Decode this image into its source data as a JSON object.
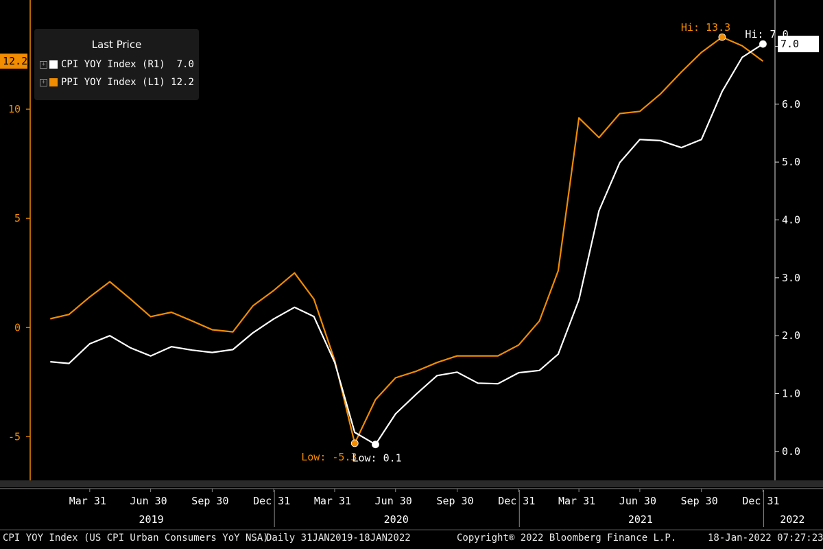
{
  "legend": {
    "title": "Last Price",
    "items": [
      {
        "label": "CPI YOY Index",
        "axis": "(R1)",
        "value": "7.0",
        "color": "#ffffff"
      },
      {
        "label": "PPI YOY Index",
        "axis": "(L1)",
        "value": "12.2",
        "color": "#f28c00"
      }
    ]
  },
  "footer": {
    "description": "CPI YOY Index (US CPI Urban Consumers YoY NSA)",
    "range": "Daily 31JAN2019-18JAN2022",
    "copyright": "Copyright® 2022 Bloomberg Finance L.P.",
    "timestamp": "18-Jan-2022 07:27:23"
  },
  "colors": {
    "background": "#000000",
    "ppi": "#f28c00",
    "cpi": "#ffffff",
    "left_axis": "#f28c00",
    "right_axis": "#ffffff"
  },
  "chart_data": {
    "type": "line",
    "x_month_labels": [
      "Mar 31",
      "Jun 30",
      "Sep 30",
      "Dec 31",
      "Mar 31",
      "Jun 30",
      "Sep 30",
      "Dec 31",
      "Mar 31",
      "Jun 30",
      "Sep 30",
      "Dec 31"
    ],
    "x_year_labels": [
      "2019",
      "2020",
      "2021",
      "2022"
    ],
    "left_axis": {
      "ticks": [
        -5,
        0,
        5,
        10
      ],
      "range": [
        -7,
        15
      ],
      "last_value_tag": "12.2"
    },
    "right_axis": {
      "ticks": [
        0.0,
        1.0,
        2.0,
        3.0,
        4.0,
        5.0,
        6.0,
        7.0
      ],
      "range": [
        -0.5,
        7.8
      ],
      "last_value_tag": "7.0"
    },
    "x": [
      "2019-01-31",
      "2019-02-28",
      "2019-03-31",
      "2019-04-30",
      "2019-05-31",
      "2019-06-30",
      "2019-07-31",
      "2019-08-31",
      "2019-09-30",
      "2019-10-31",
      "2019-11-30",
      "2019-12-31",
      "2020-01-31",
      "2020-02-29",
      "2020-03-31",
      "2020-04-30",
      "2020-05-31",
      "2020-06-30",
      "2020-07-31",
      "2020-08-31",
      "2020-09-30",
      "2020-10-31",
      "2020-11-30",
      "2020-12-31",
      "2021-01-31",
      "2021-02-28",
      "2021-03-31",
      "2021-04-30",
      "2021-05-31",
      "2021-06-30",
      "2021-07-31",
      "2021-08-31",
      "2021-09-30",
      "2021-10-31",
      "2021-11-30",
      "2021-12-31"
    ],
    "series": [
      {
        "name": "PPI YOY Index",
        "axis": "left",
        "values": [
          0.4,
          0.6,
          1.4,
          2.1,
          1.3,
          0.5,
          0.7,
          0.3,
          -0.1,
          -0.2,
          1.0,
          1.7,
          2.5,
          1.3,
          -1.5,
          -5.3,
          -3.3,
          -2.3,
          -2.0,
          -1.6,
          -1.3,
          -1.3,
          -1.3,
          -0.8,
          0.3,
          2.6,
          9.6,
          8.7,
          9.8,
          9.9,
          10.7,
          11.7,
          12.6,
          13.3,
          12.9,
          12.2
        ],
        "annotations": [
          {
            "label": "Low:",
            "value": "-5.3",
            "x": "2020-04-30",
            "y": -5.3
          },
          {
            "label": "Hi:",
            "value": "13.3",
            "x": "2021-10-31",
            "y": 13.3
          }
        ]
      },
      {
        "name": "CPI YOY Index",
        "axis": "right",
        "values": [
          1.55,
          1.52,
          1.86,
          2.0,
          1.79,
          1.65,
          1.81,
          1.75,
          1.71,
          1.76,
          2.05,
          2.29,
          2.49,
          2.33,
          1.54,
          0.33,
          0.12,
          0.65,
          0.99,
          1.31,
          1.37,
          1.18,
          1.17,
          1.36,
          1.4,
          1.68,
          2.62,
          4.16,
          4.99,
          5.39,
          5.37,
          5.25,
          5.39,
          6.22,
          6.81,
          7.04
        ],
        "annotations": [
          {
            "label": "Low:",
            "value": "0.1",
            "x": "2020-05-31",
            "y": 0.12
          },
          {
            "label": "Hi:",
            "value": "7.0",
            "x": "2021-12-31",
            "y": 7.04
          }
        ]
      }
    ]
  }
}
